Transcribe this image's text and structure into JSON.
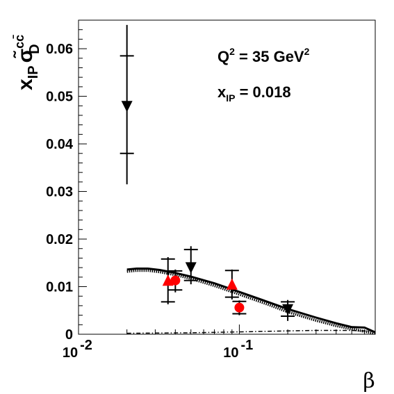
{
  "chart_data": {
    "type": "scatter",
    "x_scale": "log",
    "xlim": [
      0.01,
      0.7
    ],
    "ylim": [
      0,
      0.066
    ],
    "xlabel": "β",
    "ylabel": {
      "base": "x",
      "base_sub": "IP",
      "sigma": "σ̃",
      "sigma_sup": "cc̄",
      "sigma_sub": "D"
    },
    "x_ticks": [
      {
        "value": 0.01,
        "base": "10",
        "exp": "-2"
      },
      {
        "value": 0.1,
        "base": "10",
        "exp": "-1"
      }
    ],
    "y_ticks": [
      {
        "value": 0,
        "label": "0"
      },
      {
        "value": 0.01,
        "label": "0.01"
      },
      {
        "value": 0.02,
        "label": "0.02"
      },
      {
        "value": 0.03,
        "label": "0.03"
      },
      {
        "value": 0.04,
        "label": "0.04"
      },
      {
        "value": 0.05,
        "label": "0.05"
      },
      {
        "value": 0.06,
        "label": "0.06"
      }
    ],
    "annotations": {
      "q2": {
        "lead": "Q",
        "sup": "2",
        "mid": " = 35 GeV",
        "tail_sup": "2"
      },
      "xip": {
        "lead": "x",
        "sub": "IP",
        "tail": " = 0.018"
      }
    },
    "series": [
      {
        "marker": "triangle-down",
        "color": "#000000",
        "points": [
          {
            "x": 0.02,
            "y": 0.048,
            "stat": [
              0.038,
              0.0585
            ],
            "tot": [
              0.0315,
              0.065
            ]
          },
          {
            "x": 0.05,
            "y": 0.0141,
            "stat": [
              0.0113,
              0.0178
            ],
            "tot": [
              0.0105,
              0.0185
            ]
          },
          {
            "x": 0.2,
            "y": 0.0053,
            "stat": [
              0.0038,
              0.0068
            ],
            "tot": [
              0.0028,
              0.0072
            ]
          }
        ]
      },
      {
        "marker": "triangle-up",
        "color": "#ff0000",
        "points": [
          {
            "x": 0.036,
            "y": 0.0112,
            "stat": [
              0.0068,
              0.0158
            ],
            "tot": [
              0.0063,
              0.0162
            ]
          },
          {
            "x": 0.09,
            "y": 0.0104,
            "stat": [
              0.0078,
              0.0134
            ],
            "tot": [
              0.0073,
              0.0136
            ]
          }
        ]
      },
      {
        "marker": "circle",
        "color": "#ff0000",
        "points": [
          {
            "x": 0.04,
            "y": 0.0113,
            "stat": [
              0.0093,
              0.0133
            ],
            "tot": [
              0.0088,
              0.0136
            ]
          },
          {
            "x": 0.1,
            "y": 0.0056,
            "stat": [
              0.0043,
              0.0069
            ],
            "tot": [
              0.004,
              0.0071
            ]
          }
        ]
      }
    ],
    "curves": [
      {
        "style": "solid",
        "points": [
          [
            0.02,
            0.0136
          ],
          [
            0.023,
            0.0138
          ],
          [
            0.027,
            0.0138
          ],
          [
            0.032,
            0.0135
          ],
          [
            0.04,
            0.0129
          ],
          [
            0.05,
            0.0121
          ],
          [
            0.07,
            0.0107
          ],
          [
            0.1,
            0.0089
          ],
          [
            0.15,
            0.0068
          ],
          [
            0.2,
            0.0053
          ],
          [
            0.3,
            0.0035
          ],
          [
            0.4,
            0.0023
          ],
          [
            0.5,
            0.0015
          ],
          [
            0.6,
            0.0014
          ],
          [
            0.7,
            0.0004
          ]
        ]
      },
      {
        "style": "dotted-band",
        "points": [
          [
            0.02,
            0.0132
          ],
          [
            0.023,
            0.0134
          ],
          [
            0.027,
            0.0134
          ],
          [
            0.032,
            0.0131
          ],
          [
            0.04,
            0.0125
          ],
          [
            0.05,
            0.0117
          ],
          [
            0.07,
            0.0102
          ],
          [
            0.1,
            0.0084
          ],
          [
            0.15,
            0.0063
          ],
          [
            0.2,
            0.0047
          ],
          [
            0.3,
            0.0029
          ],
          [
            0.4,
            0.0018
          ],
          [
            0.5,
            0.0011
          ],
          [
            0.6,
            0.0006
          ],
          [
            0.7,
            0.0002
          ]
        ]
      },
      {
        "style": "dash-dot",
        "points": [
          [
            0.02,
            0.0002
          ],
          [
            0.05,
            0.0003
          ],
          [
            0.1,
            0.0005
          ],
          [
            0.2,
            0.0007
          ],
          [
            0.3,
            0.0008
          ],
          [
            0.5,
            0.0008
          ],
          [
            0.7,
            0.0006
          ]
        ]
      }
    ]
  }
}
